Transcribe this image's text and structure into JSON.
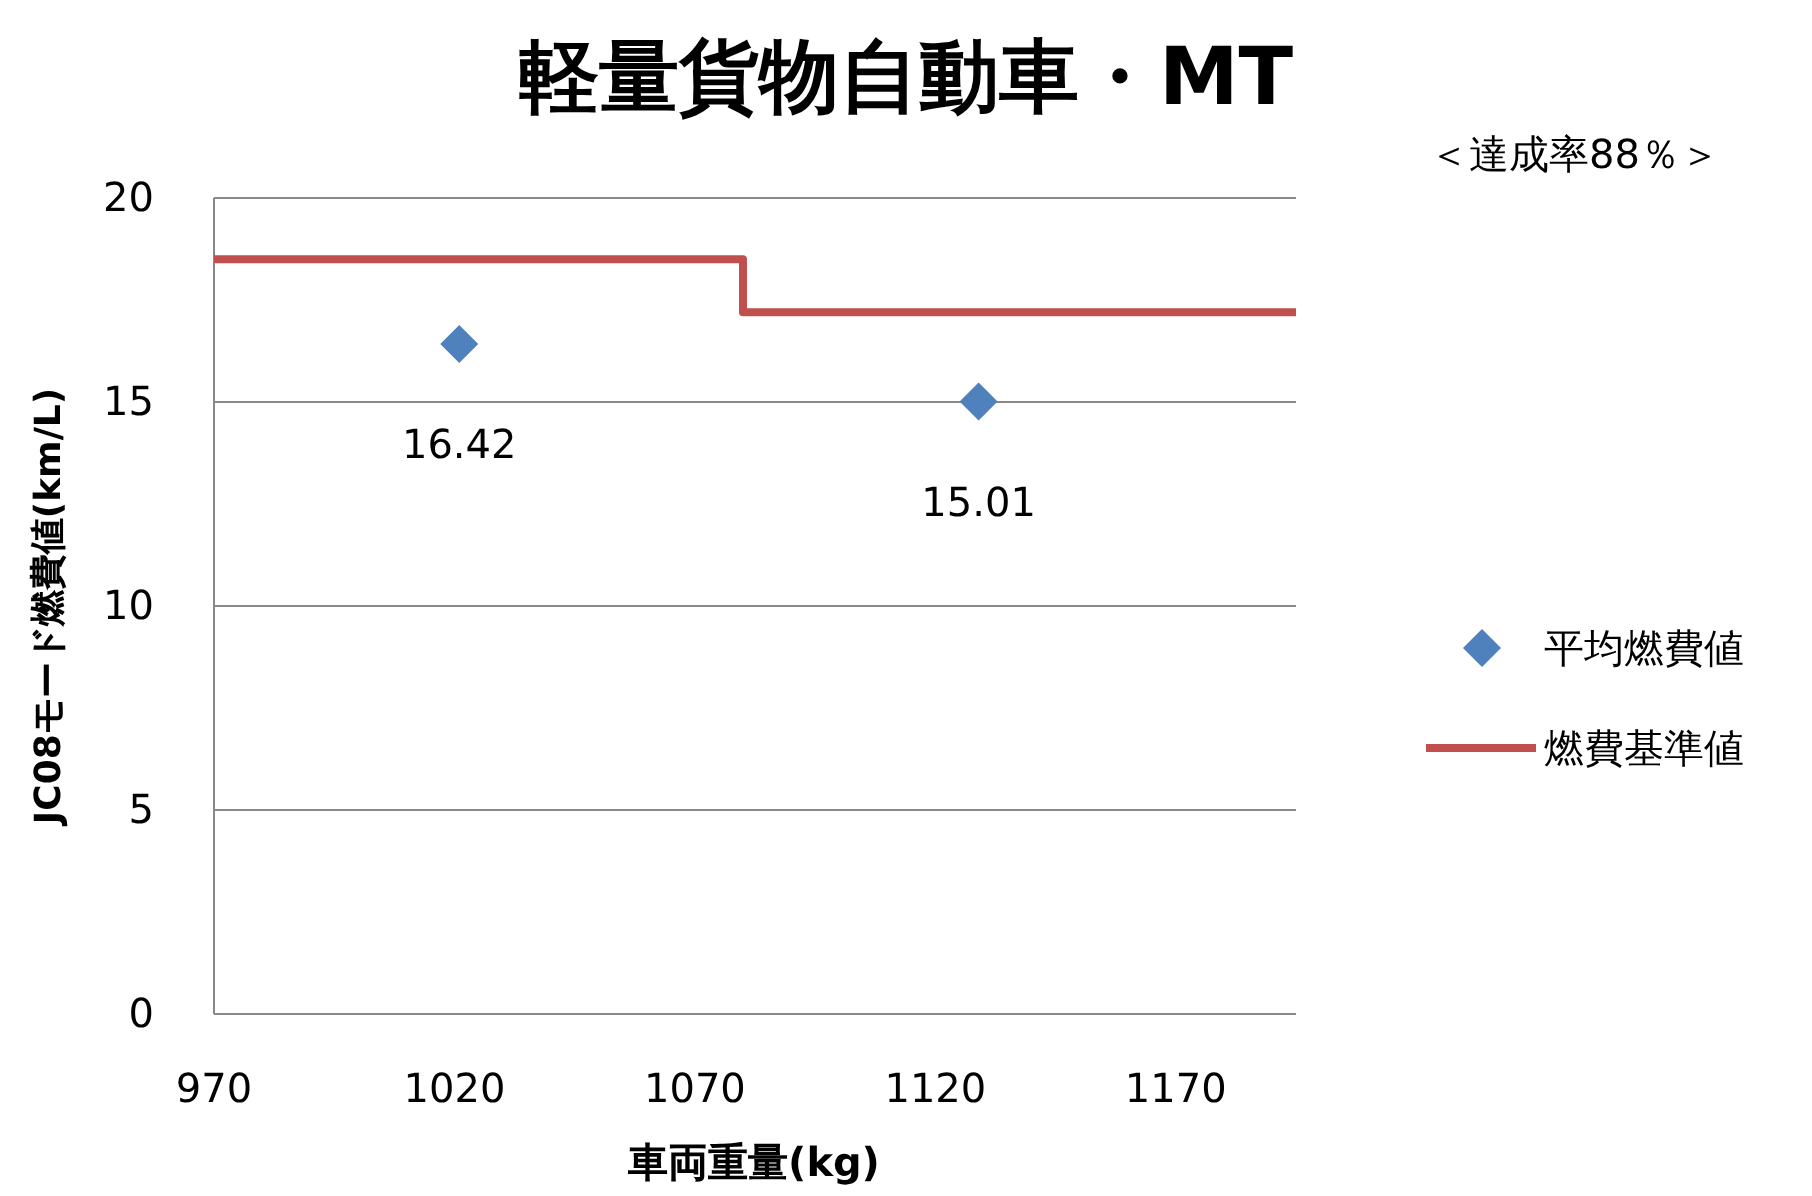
{
  "chart_data": {
    "type": "scatter",
    "title": "軽量貨物自動車・MT",
    "xlabel": "車両重量(kg)",
    "ylabel": "JC08モード燃費値(km/L)",
    "annotations": [
      "＜達成率88％＞"
    ],
    "xlim": [
      970,
      1195
    ],
    "xticks": [
      970,
      1020,
      1070,
      1120,
      1170
    ],
    "ylim": [
      0,
      20
    ],
    "yticks": [
      0,
      5,
      10,
      15,
      20
    ],
    "grid": "y",
    "legend": "right",
    "series": [
      {
        "name": "平均燃費値",
        "color": "#4f81bd",
        "marker": "diamond",
        "x": [
          1021,
          1129
        ],
        "values": [
          16.42,
          15.01
        ],
        "value_labels": [
          "16.42",
          "15.01"
        ]
      },
      {
        "name": "燃費基準値",
        "type": "step",
        "color": "#c0504d",
        "x": [
          970,
          1080,
          1195
        ],
        "values": [
          18.5,
          17.2,
          17.2
        ]
      }
    ]
  }
}
